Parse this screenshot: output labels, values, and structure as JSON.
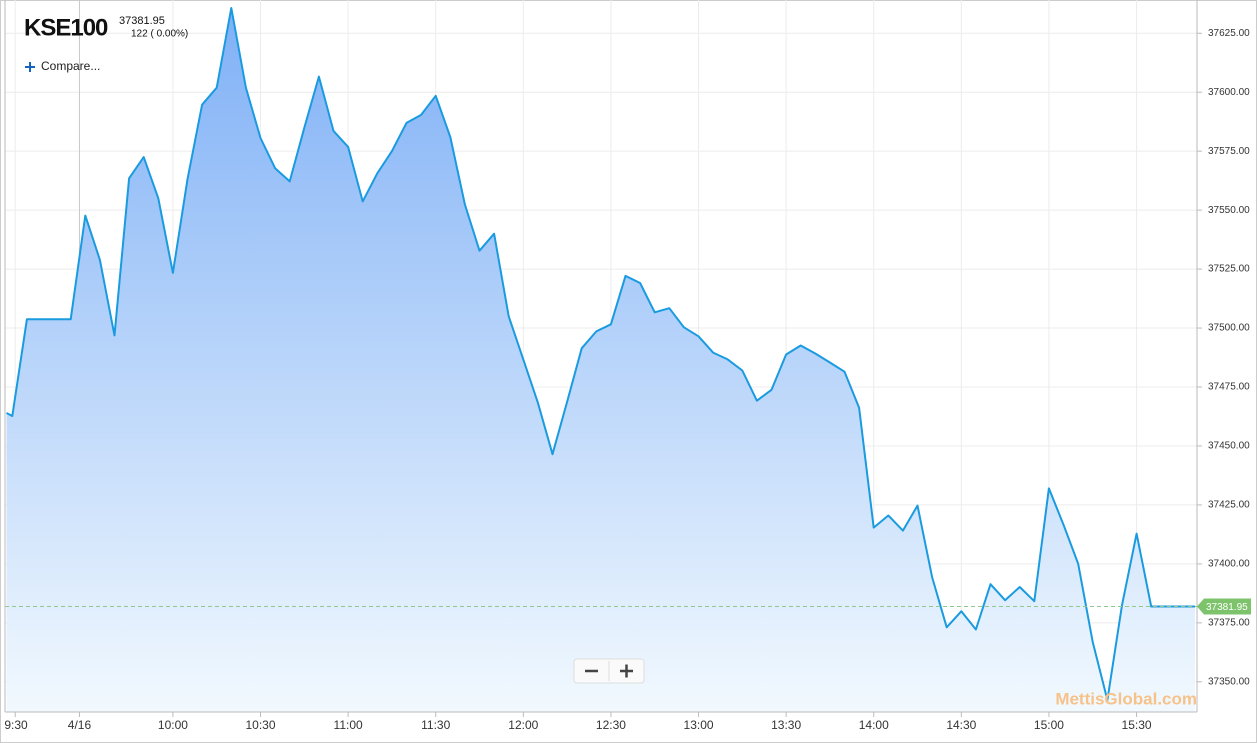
{
  "header": {
    "symbol": "KSE100",
    "change": "122 ( 0.00%)",
    "compare": "Compare..."
  },
  "watermark": "MettisGlobal.com",
  "chart_data": {
    "type": "line",
    "color": "#1a9be0",
    "grid": true,
    "last_value": 37381.95,
    "x": [
      543,
      545,
      550,
      555,
      560,
      565,
      570,
      575,
      580,
      585,
      590,
      595,
      600,
      605,
      610,
      615,
      620,
      625,
      630,
      635,
      640,
      645,
      650,
      655,
      660,
      665,
      670,
      675,
      680,
      685,
      690,
      695,
      700,
      705,
      710,
      715,
      720,
      725,
      730,
      735,
      740,
      745,
      750,
      755,
      760,
      765,
      770,
      775,
      780,
      785,
      790,
      795,
      800,
      805,
      810,
      815,
      820,
      825,
      830,
      835,
      840,
      845,
      850,
      855,
      860,
      865,
      870,
      875,
      880,
      885,
      890,
      895,
      900,
      905,
      910,
      915,
      920,
      925,
      930,
      935,
      940,
      945,
      950
    ],
    "values": [
      37464.0,
      37462.7,
      37503.7,
      37503.7,
      37503.7,
      37503.7,
      37547.7,
      37528.9,
      37496.9,
      37563.5,
      37572.5,
      37555.0,
      37523.4,
      37563.1,
      37594.7,
      37601.9,
      37635.7,
      37601.9,
      37580.6,
      37567.8,
      37562.2,
      37584.9,
      37606.6,
      37583.6,
      37576.8,
      37553.7,
      37565.6,
      37575.0,
      37587.0,
      37590.4,
      37598.5,
      37581.0,
      37552.4,
      37532.8,
      37540.0,
      37505.0,
      37486.7,
      37468.3,
      37446.5,
      37468.7,
      37491.4,
      37498.6,
      37501.6,
      37522.1,
      37519.1,
      37506.7,
      37508.4,
      37500.3,
      37496.5,
      37489.6,
      37486.7,
      37482.0,
      37469.2,
      37473.8,
      37488.8,
      37492.6,
      37489.2,
      37485.4,
      37481.5,
      37466.2,
      37415.4,
      37420.5,
      37414.1,
      37424.7,
      37394.4,
      37373.1,
      37379.9,
      37372.2,
      37391.4,
      37384.6,
      37390.2,
      37384.2,
      37432.0,
      37416.6,
      37400.0,
      37366.7,
      37342.3,
      37382.5,
      37412.8,
      37381.95,
      37381.95,
      37381.95,
      37381.95
    ],
    "xlim": [
      542.5,
      950.7
    ],
    "xticks": [
      {
        "value": 546,
        "label": "9:30"
      },
      {
        "value": 568,
        "label": "4/16"
      },
      {
        "value": 600,
        "label": "10:00"
      },
      {
        "value": 630,
        "label": "10:30"
      },
      {
        "value": 660,
        "label": "11:00"
      },
      {
        "value": 690,
        "label": "11:30"
      },
      {
        "value": 720,
        "label": "12:00"
      },
      {
        "value": 750,
        "label": "12:30"
      },
      {
        "value": 780,
        "label": "13:00"
      },
      {
        "value": 810,
        "label": "13:30"
      },
      {
        "value": 840,
        "label": "14:00"
      },
      {
        "value": 870,
        "label": "14:30"
      },
      {
        "value": 900,
        "label": "15:00"
      },
      {
        "value": 930,
        "label": "15:30"
      }
    ],
    "ylim": [
      37337.2,
      37639.1
    ],
    "yticks": [
      {
        "value": 37350,
        "label": "37350.00"
      },
      {
        "value": 37375,
        "label": "37375.00"
      },
      {
        "value": 37400,
        "label": "37400.00"
      },
      {
        "value": 37425,
        "label": "37425.00"
      },
      {
        "value": 37450,
        "label": "37450.00"
      },
      {
        "value": 37475,
        "label": "37475.00"
      },
      {
        "value": 37500,
        "label": "37500.00"
      },
      {
        "value": 37525,
        "label": "37525.00"
      },
      {
        "value": 37550,
        "label": "37550.00"
      },
      {
        "value": 37575,
        "label": "37575.00"
      },
      {
        "value": 37600,
        "label": "37600.00"
      },
      {
        "value": 37625,
        "label": "37625.00"
      }
    ]
  }
}
